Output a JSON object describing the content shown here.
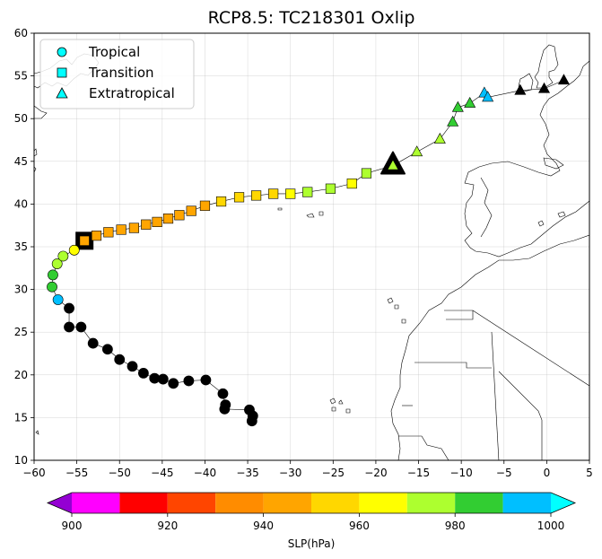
{
  "chart_data": {
    "type": "scatter",
    "title": "RCP8.5: TC218301 Oxlip",
    "xlabel": "",
    "ylabel": "",
    "xlim": [
      -60,
      5
    ],
    "ylim": [
      10,
      60
    ],
    "xticks": [
      -60,
      -55,
      -50,
      -45,
      -40,
      -35,
      -30,
      -25,
      -20,
      -15,
      -10,
      -5,
      0,
      5
    ],
    "yticks": [
      10,
      15,
      20,
      25,
      30,
      35,
      40,
      45,
      50,
      55,
      60
    ],
    "grid": true,
    "legend": {
      "placement": "top-left",
      "entries": [
        {
          "label": "Tropical",
          "marker": "circle"
        },
        {
          "label": "Transition",
          "marker": "square"
        },
        {
          "label": "Extratropical",
          "marker": "triangle"
        }
      ]
    },
    "colorbar": {
      "label": "SLP(hPa)",
      "boundaries": [
        890,
        900,
        910,
        920,
        930,
        940,
        950,
        960,
        970,
        980,
        990,
        1000,
        1010
      ],
      "ticks": [
        900,
        920,
        940,
        960,
        980,
        1000
      ],
      "colors": [
        "#c71585",
        "#ff00ff",
        "#ff0000",
        "#ff4500",
        "#ff8c00",
        "#ffa500",
        "#ffd700",
        "#ffff00",
        "#adff2f",
        "#32cd32",
        "#00bfff"
      ],
      "under_color": "#9400d3",
      "over_color": "#00ffff"
    },
    "series": [
      {
        "phase": "tropical",
        "points": [
          [
            -34.5,
            14.6,
            1005
          ],
          [
            -34.4,
            15.2,
            1005
          ],
          [
            -34.8,
            15.9,
            1005
          ],
          [
            -37.7,
            16.0,
            1005
          ],
          [
            -37.6,
            16.5,
            1005
          ],
          [
            -37.9,
            17.8,
            1005
          ],
          [
            -39.9,
            19.4,
            1005
          ],
          [
            -41.9,
            19.3,
            1005
          ],
          [
            -43.7,
            19.0,
            1005
          ],
          [
            -44.9,
            19.5,
            1005
          ],
          [
            -45.9,
            19.6,
            1005
          ],
          [
            -47.2,
            20.2,
            1005
          ],
          [
            -48.5,
            21.0,
            1005
          ],
          [
            -50.0,
            21.8,
            1005
          ],
          [
            -51.4,
            23.0,
            1005
          ],
          [
            -53.1,
            23.7,
            1005
          ],
          [
            -54.5,
            25.6,
            1005
          ],
          [
            -55.9,
            25.6,
            1005
          ],
          [
            -55.9,
            27.8,
            1005
          ],
          [
            -57.2,
            28.8,
            995
          ],
          [
            -57.9,
            30.3,
            985
          ],
          [
            -57.8,
            31.7,
            985
          ],
          [
            -57.3,
            33.0,
            975
          ],
          [
            -56.6,
            33.9,
            975
          ],
          [
            -55.3,
            34.6,
            965
          ]
        ]
      },
      {
        "phase": "transition",
        "points": [
          [
            -54.1,
            35.7,
            945
          ],
          [
            -52.7,
            36.3,
            945
          ],
          [
            -51.3,
            36.7,
            945
          ],
          [
            -49.8,
            37.0,
            945
          ],
          [
            -48.3,
            37.2,
            945
          ],
          [
            -46.9,
            37.6,
            945
          ],
          [
            -45.6,
            37.9,
            945
          ],
          [
            -44.3,
            38.3,
            945
          ],
          [
            -43.0,
            38.7,
            945
          ],
          [
            -41.6,
            39.2,
            945
          ],
          [
            -40.0,
            39.8,
            945
          ],
          [
            -38.1,
            40.3,
            955
          ],
          [
            -36.0,
            40.8,
            955
          ],
          [
            -34.0,
            41.0,
            955
          ],
          [
            -32.0,
            41.2,
            955
          ],
          [
            -30.0,
            41.2,
            965
          ],
          [
            -28.0,
            41.4,
            975
          ],
          [
            -25.3,
            41.8,
            975
          ],
          [
            -22.8,
            42.4,
            965
          ],
          [
            -21.1,
            43.6,
            975
          ]
        ]
      },
      {
        "phase": "extratropical",
        "points": [
          [
            -18.0,
            44.5,
            975
          ],
          [
            -15.2,
            46.1,
            975
          ],
          [
            -12.5,
            47.6,
            975
          ],
          [
            -11.0,
            49.6,
            985
          ],
          [
            -10.4,
            51.3,
            985
          ],
          [
            -9.0,
            51.8,
            985
          ],
          [
            -7.3,
            53.0,
            995
          ],
          [
            -6.9,
            52.5,
            995
          ],
          [
            -3.1,
            53.3,
            1005
          ],
          [
            -0.3,
            53.5,
            1005
          ],
          [
            2.0,
            54.5,
            1005
          ]
        ]
      }
    ],
    "highlights": [
      {
        "marker": "square",
        "x": -54.1,
        "y": 35.7
      },
      {
        "marker": "triangle",
        "x": -18.0,
        "y": 44.5
      }
    ]
  }
}
